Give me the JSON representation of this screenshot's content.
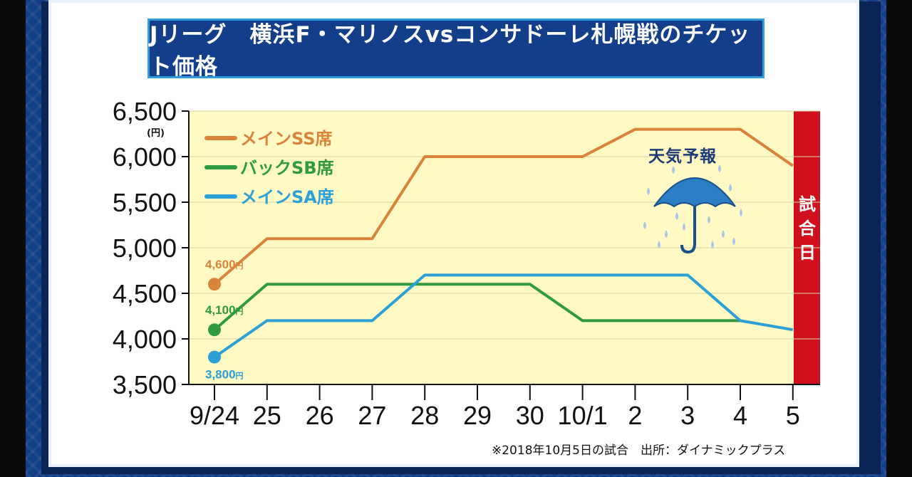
{
  "title": "Jリーグ　横浜F・マリノスvsコンサドーレ札幌戦のチケット価格",
  "unit": "(円)",
  "weather_label": "天気予報",
  "weather_icon": "umbrella-rain-icon",
  "match_day_label": [
    "試",
    "合",
    "日"
  ],
  "source_note": "※2018年10月5日の試合　出所：ダイナミックプラス",
  "colors": {
    "plot_bg": "#fff9c4",
    "match_day": "#d0101c",
    "ss": "#d9833b",
    "sb": "#2f9a3f",
    "sa": "#2c9fd8",
    "title_bg": "#123e8a"
  },
  "chart_data": {
    "type": "line",
    "categories": [
      "9/24",
      "25",
      "26",
      "27",
      "28",
      "29",
      "30",
      "10/1",
      "2",
      "3",
      "4",
      "5"
    ],
    "ylim": [
      3500,
      6500
    ],
    "yticks": [
      "3,500",
      "4,000",
      "4,500",
      "5,000",
      "5,500",
      "6,000",
      "6,500"
    ],
    "legend_position": "top-left",
    "series": [
      {
        "name": "メインSS席",
        "color": "#d9833b",
        "points": [
          [
            0,
            4600
          ],
          [
            1,
            5100
          ],
          [
            3,
            5100
          ],
          [
            4,
            6000
          ],
          [
            7,
            6000
          ],
          [
            8,
            6300
          ],
          [
            10,
            6300
          ],
          [
            11,
            5900
          ]
        ]
      },
      {
        "name": "バックSB席",
        "color": "#2f9a3f",
        "points": [
          [
            0,
            4100
          ],
          [
            1,
            4600
          ],
          [
            6,
            4600
          ],
          [
            7,
            4200
          ],
          [
            10,
            4200
          ]
        ]
      },
      {
        "name": "メインSA席",
        "color": "#2c9fd8",
        "points": [
          [
            0,
            3800
          ],
          [
            1,
            4200
          ],
          [
            3,
            4200
          ],
          [
            4,
            4700
          ],
          [
            9,
            4700
          ],
          [
            10,
            4200
          ],
          [
            11,
            4100
          ]
        ]
      }
    ],
    "start_labels": [
      {
        "series": 0,
        "num": "4,600",
        "unit": "円"
      },
      {
        "series": 1,
        "num": "4,100",
        "unit": "円"
      },
      {
        "series": 2,
        "num": "3,800",
        "unit": "円"
      }
    ]
  }
}
